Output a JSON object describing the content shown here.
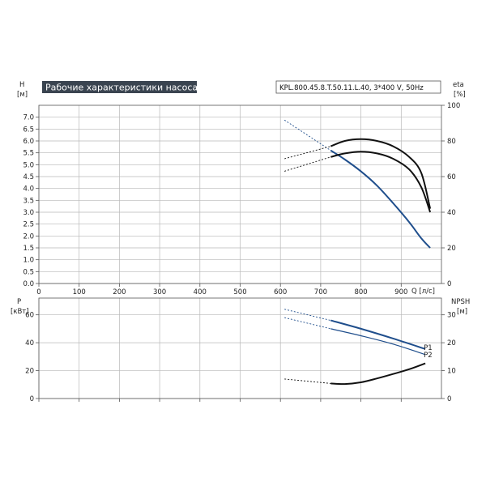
{
  "chart_data": {
    "type": "line",
    "title": "Рабочие характеристики насоса",
    "model": "KPL.800.45.8.T.50.11.L.40, 3*400 V, 50Hz",
    "x_axis": {
      "label": "Q [л/с]",
      "range": [
        0,
        1000
      ],
      "ticks": [
        0,
        100,
        200,
        300,
        400,
        500,
        600,
        700,
        800,
        900
      ]
    },
    "top_panel": {
      "y_left": {
        "label_line1": "H",
        "label_line2": "[м]",
        "range": [
          0,
          7.5
        ],
        "ticks": [
          "0.0",
          "0.5",
          "1.0",
          "1.5",
          "2.0",
          "2.5",
          "3.0",
          "3.5",
          "4.0",
          "4.5",
          "5.0",
          "5.5",
          "6.0",
          "6.5",
          "7.0"
        ]
      },
      "y_right": {
        "label_line1": "eta",
        "label_line2": "[%]",
        "range": [
          0,
          100
        ],
        "ticks": [
          "0",
          "20",
          "40",
          "60",
          "80",
          "100"
        ]
      },
      "series": [
        {
          "color": "#1f4e8c",
          "dashed": [
            [
              610,
              6.88
            ],
            [
              725,
              5.6
            ]
          ],
          "solid": [
            [
              725,
              5.6
            ],
            [
              760,
              5.22
            ],
            [
              800,
              4.72
            ],
            [
              840,
              4.12
            ],
            [
              880,
              3.38
            ],
            [
              920,
              2.58
            ],
            [
              950,
              1.9
            ],
            [
              972,
              1.5
            ]
          ]
        },
        {
          "axis": "right",
          "color": "#111111",
          "dashed": [
            [
              610,
              70
            ],
            [
              725,
              77
            ]
          ],
          "solid": [
            [
              725,
              77
            ],
            [
              760,
              80
            ],
            [
              800,
              81
            ],
            [
              840,
              80
            ],
            [
              880,
              77
            ],
            [
              920,
              71
            ],
            [
              950,
              62
            ],
            [
              972,
              42
            ]
          ]
        },
        {
          "axis": "right",
          "color": "#111111",
          "dashed": [
            [
              610,
              63
            ],
            [
              725,
              71
            ]
          ],
          "solid": [
            [
              725,
              71
            ],
            [
              760,
              73
            ],
            [
              800,
              74
            ],
            [
              840,
              73
            ],
            [
              880,
              70
            ],
            [
              920,
              64
            ],
            [
              950,
              54
            ],
            [
              972,
              40
            ]
          ]
        }
      ]
    },
    "bottom_panel": {
      "y_left": {
        "label_line1": "P",
        "label_line2": "[кВт]",
        "range": [
          0,
          72
        ],
        "ticks": [
          "0",
          "20",
          "40",
          "60"
        ]
      },
      "y_right": {
        "label_line1": "NPSH",
        "label_line2": "[м]",
        "range": [
          0,
          36
        ],
        "ticks": [
          "0",
          "10",
          "20",
          "30"
        ]
      },
      "series": [
        {
          "name": "P1",
          "color": "#1f4e8c",
          "dashed": [
            [
              610,
              64
            ],
            [
              725,
              56
            ]
          ],
          "solid": [
            [
              725,
              56
            ],
            [
              800,
              50
            ],
            [
              880,
              43
            ],
            [
              960,
              35.5
            ]
          ]
        },
        {
          "name": "P2",
          "color": "#1f4e8c",
          "dashed": [
            [
              610,
              58
            ],
            [
              725,
              50
            ]
          ],
          "solid": [
            [
              725,
              50
            ],
            [
              800,
              45
            ],
            [
              880,
              39
            ],
            [
              960,
              31.5
            ]
          ]
        },
        {
          "axis": "right",
          "color": "#111111",
          "dashed": [
            [
              610,
              7
            ],
            [
              725,
              5.4
            ]
          ],
          "solid": [
            [
              725,
              5.4
            ],
            [
              760,
              5.2
            ],
            [
              800,
              5.8
            ],
            [
              840,
              7.2
            ],
            [
              880,
              8.8
            ],
            [
              920,
              10.5
            ],
            [
              960,
              12.6
            ]
          ]
        }
      ]
    }
  }
}
